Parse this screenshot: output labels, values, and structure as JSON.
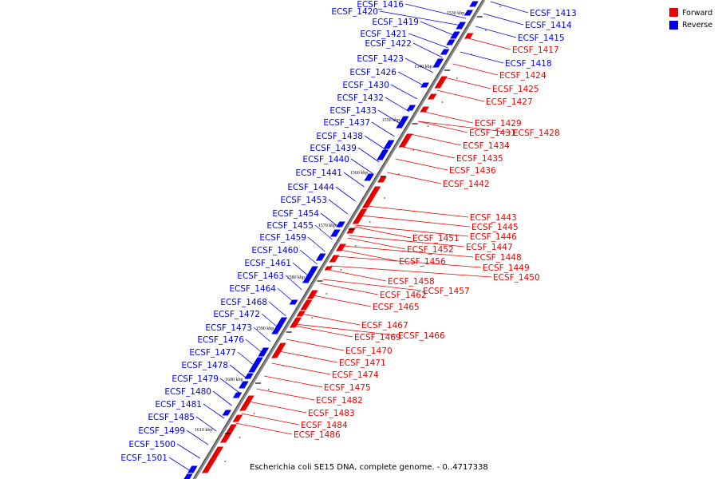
{
  "caption": "Escherichia coli SE15 DNA, complete genome. - 0..4717338",
  "legend": [
    {
      "label": "Forward",
      "color": "#ee0000"
    },
    {
      "label": "Reverse",
      "color": "#0000ee"
    }
  ],
  "colors": {
    "forward": "#ee0000",
    "reverse": "#0000ee",
    "backbone": "#777777"
  },
  "ticks": [
    "1530 kbp",
    "1540 kbp",
    "1550 kbp",
    "1560 kbp",
    "1570 kbp",
    "1580 kbp",
    "1590 kbp",
    "1600 kbp",
    "1610 kbp"
  ],
  "reverse_labels": [
    "ECSF_1416",
    "ECSF_1420",
    "ECSF_1419",
    "ECSF_1421",
    "ECSF_1422",
    "ECSF_1423",
    "ECSF_1426",
    "ECSF_1430",
    "ECSF_1432",
    "ECSF_1433",
    "ECSF_1437",
    "ECSF_1438",
    "ECSF_1439",
    "ECSF_1440",
    "ECSF_1441",
    "ECSF_1444",
    "ECSF_1453",
    "ECSF_1454",
    "ECSF_1455",
    "ECSF_1459",
    "ECSF_1460",
    "ECSF_1461",
    "ECSF_1463",
    "ECSF_1464",
    "ECSF_1468",
    "ECSF_1472",
    "ECSF_1473",
    "ECSF_1476",
    "ECSF_1477",
    "ECSF_1478",
    "ECSF_1479",
    "ECSF_1480",
    "ECSF_1481",
    "ECSF_1485",
    "ECSF_1499",
    "ECSF_1500",
    "ECSF_1501"
  ],
  "reverse_labels_right": [
    "ECSF_1413",
    "ECSF_1414",
    "ECSF_1415",
    "ECSF_1418"
  ],
  "forward_labels": [
    "ECSF_1417",
    "ECSF_1424",
    "ECSF_1425",
    "ECSF_1427",
    "ECSF_1429",
    "ECSF_1431",
    "ECSF_1428",
    "ECSF_1434",
    "ECSF_1435",
    "ECSF_1436",
    "ECSF_1442",
    "ECSF_1443",
    "ECSF_1445",
    "ECSF_1446",
    "ECSF_1451",
    "ECSF_1447",
    "ECSF_1452",
    "ECSF_1448",
    "ECSF_1456",
    "ECSF_1449",
    "ECSF_1450",
    "ECSF_1458",
    "ECSF_1457",
    "ECSF_1462",
    "ECSF_1465",
    "ECSF_1467",
    "ECSF_1469",
    "ECSF_1466",
    "ECSF_1470",
    "ECSF_1471",
    "ECSF_1474",
    "ECSF_1475",
    "ECSF_1482",
    "ECSF_1483",
    "ECSF_1484",
    "ECSF_1486"
  ]
}
